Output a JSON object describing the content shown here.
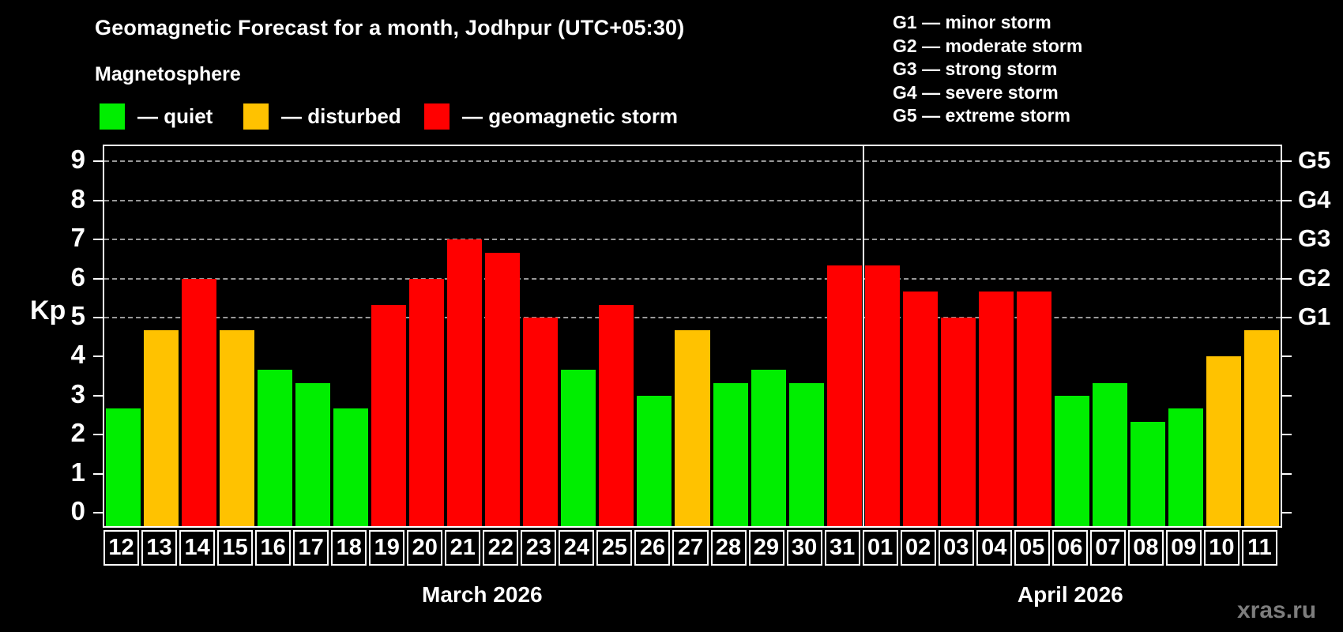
{
  "header": {
    "title": "Geomagnetic Forecast for a month, Jodhpur (UTC+05:30)",
    "subtitle": "Magnetosphere"
  },
  "legend": {
    "items": [
      {
        "label": "— quiet",
        "status": "quiet"
      },
      {
        "label": "— disturbed",
        "status": "disturbed"
      },
      {
        "label": "— geomagnetic storm",
        "status": "storm"
      }
    ]
  },
  "g_legend": {
    "lines": [
      "G1 — minor storm",
      "G2 — moderate storm",
      "G3 — strong storm",
      "G4 — severe storm",
      "G5 — extreme storm"
    ]
  },
  "watermark": "xras.ru",
  "colors": {
    "quiet": "#00ee00",
    "disturbed": "#ffc200",
    "storm": "#ff0000",
    "grid": "#999999",
    "axis": "#ffffff",
    "background": "#000000",
    "watermark": "#7d7d7d"
  },
  "chart_data": {
    "type": "bar",
    "title": "Geomagnetic Forecast for a month, Jodhpur (UTC+05:30)",
    "ylabel": "Kp",
    "ylim": [
      0,
      9.4
    ],
    "yticks": [
      0,
      1,
      2,
      3,
      4,
      5,
      6,
      7,
      8,
      9
    ],
    "gridlines_at": [
      5,
      6,
      7,
      8,
      9
    ],
    "grid": "dashed, storm levels only",
    "legend_position": "top",
    "right_axis_labels": [
      {
        "kp": 5,
        "label": "G1"
      },
      {
        "kp": 6,
        "label": "G2"
      },
      {
        "kp": 7,
        "label": "G3"
      },
      {
        "kp": 8,
        "label": "G4"
      },
      {
        "kp": 9,
        "label": "G5"
      }
    ],
    "months": [
      {
        "label": "March 2026",
        "days": 20
      },
      {
        "label": "April 2026",
        "days": 11
      }
    ],
    "categories": [
      "12",
      "13",
      "14",
      "15",
      "16",
      "17",
      "18",
      "19",
      "20",
      "21",
      "22",
      "23",
      "24",
      "25",
      "26",
      "27",
      "28",
      "29",
      "30",
      "31",
      "01",
      "02",
      "03",
      "04",
      "05",
      "06",
      "07",
      "08",
      "09",
      "10",
      "11"
    ],
    "values": [
      2.67,
      4.67,
      6.0,
      4.67,
      3.67,
      3.33,
      2.67,
      5.33,
      6.0,
      7.0,
      6.67,
      5.0,
      3.67,
      5.33,
      3.0,
      4.67,
      3.33,
      3.67,
      3.33,
      6.33,
      6.33,
      5.67,
      5.0,
      5.67,
      5.67,
      3.0,
      3.33,
      2.33,
      2.67,
      4.0,
      4.67
    ],
    "statuses": [
      "quiet",
      "disturbed",
      "storm",
      "disturbed",
      "quiet",
      "quiet",
      "quiet",
      "storm",
      "storm",
      "storm",
      "storm",
      "storm",
      "quiet",
      "storm",
      "quiet",
      "disturbed",
      "quiet",
      "quiet",
      "quiet",
      "storm",
      "storm",
      "storm",
      "storm",
      "storm",
      "storm",
      "quiet",
      "quiet",
      "quiet",
      "quiet",
      "disturbed",
      "disturbed"
    ]
  }
}
